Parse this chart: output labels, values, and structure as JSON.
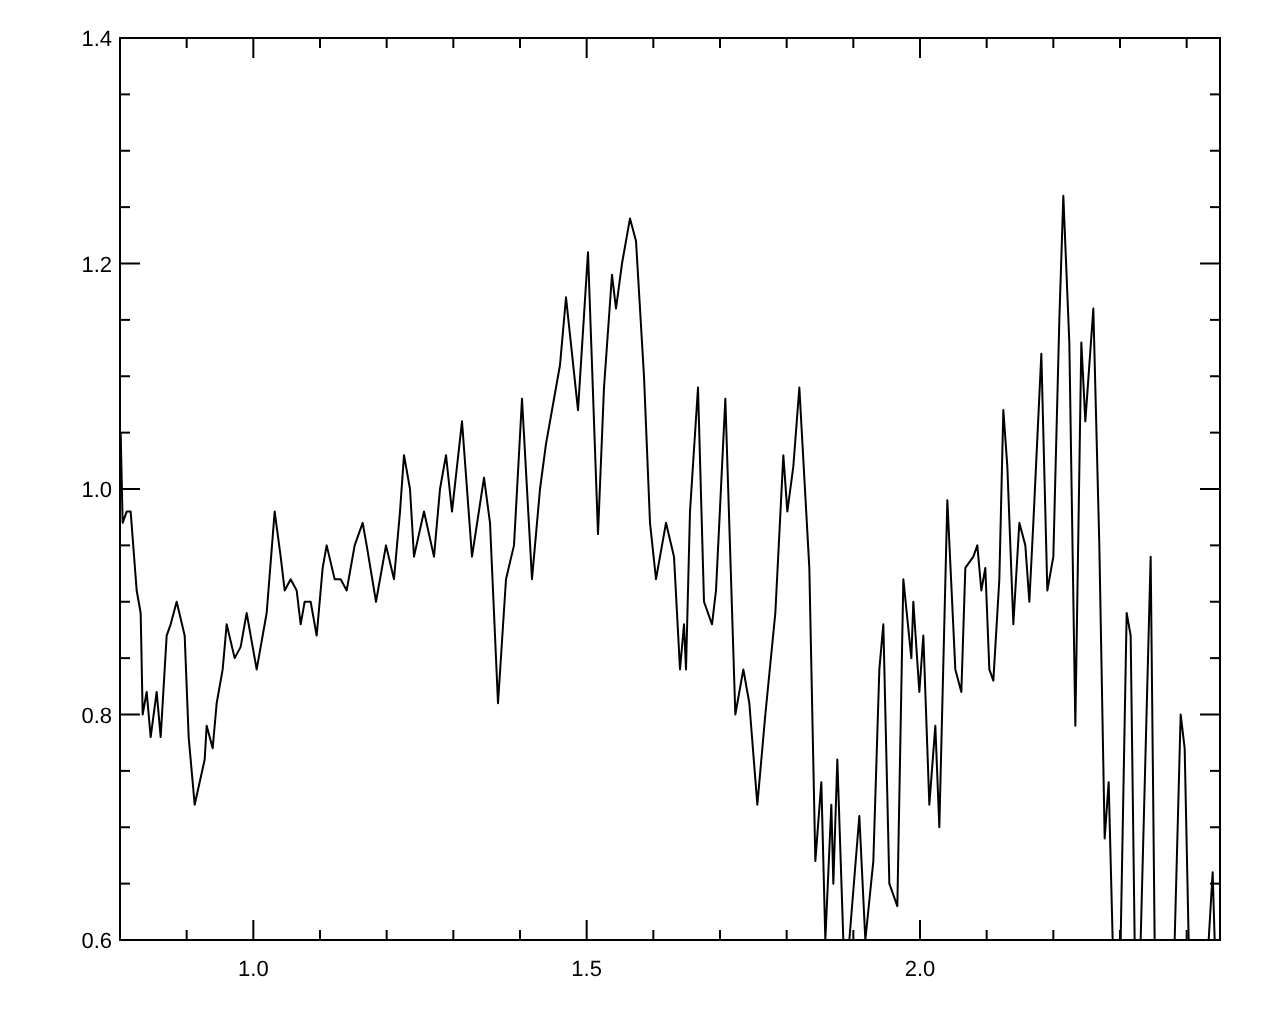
{
  "chart_data": {
    "type": "line",
    "color": "#000000",
    "x": [
      0.801,
      0.804,
      0.81,
      0.816,
      0.825,
      0.831,
      0.834,
      0.84,
      0.846,
      0.855,
      0.861,
      0.87,
      0.876,
      0.885,
      0.897,
      0.903,
      0.912,
      0.927,
      0.93,
      0.939,
      0.945,
      0.954,
      0.96,
      0.972,
      0.981,
      0.99,
      0.996,
      1.005,
      1.02,
      1.032,
      1.041,
      1.047,
      1.056,
      1.065,
      1.071,
      1.077,
      1.086,
      1.095,
      1.104,
      1.11,
      1.122,
      1.131,
      1.14,
      1.152,
      1.164,
      1.17,
      1.184,
      1.199,
      1.211,
      1.22,
      1.226,
      1.235,
      1.241,
      1.256,
      1.271,
      1.28,
      1.289,
      1.298,
      1.313,
      1.328,
      1.346,
      1.355,
      1.367,
      1.379,
      1.391,
      1.403,
      1.418,
      1.43,
      1.439,
      1.46,
      1.469,
      1.487,
      1.502,
      1.517,
      1.526,
      1.538,
      1.544,
      1.553,
      1.565,
      1.574,
      1.586,
      1.595,
      1.604,
      1.619,
      1.631,
      1.64,
      1.646,
      1.649,
      1.655,
      1.667,
      1.676,
      1.688,
      1.694,
      1.708,
      1.723,
      1.735,
      1.744,
      1.756,
      1.768,
      1.783,
      1.795,
      1.801,
      1.81,
      1.819,
      1.834,
      1.843,
      1.852,
      1.858,
      1.867,
      1.87,
      1.876,
      1.885,
      1.894,
      1.909,
      1.918,
      1.93,
      1.939,
      1.945,
      1.954,
      1.966,
      1.975,
      1.987,
      1.99,
      1.999,
      2.005,
      2.014,
      2.023,
      2.029,
      2.041,
      2.053,
      2.062,
      2.068,
      2.08,
      2.086,
      2.092,
      2.098,
      2.104,
      2.11,
      2.119,
      2.125,
      2.131,
      2.14,
      2.149,
      2.158,
      2.164,
      2.17,
      2.182,
      2.191,
      2.2,
      2.209,
      2.215,
      2.224,
      2.233,
      2.242,
      2.248,
      2.26,
      2.269,
      2.277,
      2.283,
      2.289,
      2.301,
      2.31,
      2.316,
      2.322,
      2.331,
      2.346,
      2.352,
      2.382,
      2.391,
      2.397,
      2.403,
      2.433,
      2.439,
      2.442
    ],
    "values": [
      1.05,
      0.97,
      0.98,
      0.98,
      0.91,
      0.89,
      0.8,
      0.82,
      0.78,
      0.82,
      0.78,
      0.87,
      0.88,
      0.9,
      0.87,
      0.78,
      0.72,
      0.76,
      0.79,
      0.77,
      0.81,
      0.84,
      0.88,
      0.85,
      0.86,
      0.89,
      0.87,
      0.84,
      0.89,
      0.98,
      0.94,
      0.91,
      0.92,
      0.91,
      0.88,
      0.9,
      0.9,
      0.87,
      0.93,
      0.95,
      0.92,
      0.92,
      0.91,
      0.95,
      0.97,
      0.95,
      0.9,
      0.95,
      0.92,
      0.98,
      1.03,
      1.0,
      0.94,
      0.98,
      0.94,
      1.0,
      1.03,
      0.98,
      1.06,
      0.94,
      1.01,
      0.97,
      0.81,
      0.92,
      0.95,
      1.08,
      0.92,
      1.0,
      1.04,
      1.11,
      1.17,
      1.07,
      1.21,
      0.96,
      1.09,
      1.19,
      1.16,
      1.2,
      1.24,
      1.22,
      1.1,
      0.97,
      0.92,
      0.97,
      0.94,
      0.84,
      0.88,
      0.84,
      0.98,
      1.09,
      0.9,
      0.88,
      0.91,
      1.08,
      0.8,
      0.84,
      0.81,
      0.72,
      0.8,
      0.89,
      1.03,
      0.98,
      1.02,
      1.09,
      0.93,
      0.67,
      0.74,
      0.6,
      0.72,
      0.65,
      0.76,
      0.6,
      0.6,
      0.71,
      0.6,
      0.67,
      0.84,
      0.88,
      0.65,
      0.63,
      0.92,
      0.85,
      0.9,
      0.82,
      0.87,
      0.72,
      0.79,
      0.7,
      0.99,
      0.84,
      0.82,
      0.93,
      0.94,
      0.95,
      0.91,
      0.93,
      0.84,
      0.83,
      0.92,
      1.07,
      1.02,
      0.88,
      0.97,
      0.95,
      0.9,
      0.97,
      1.12,
      0.91,
      0.94,
      1.15,
      1.26,
      1.13,
      0.79,
      1.13,
      1.06,
      1.16,
      0.95,
      0.69,
      0.74,
      0.6,
      0.6,
      0.89,
      0.87,
      0.6,
      0.6,
      0.94,
      0.6,
      0.6,
      0.8,
      0.77,
      0.6,
      0.6,
      0.66,
      0.6
    ],
    "xlim": [
      0.8,
      2.45
    ],
    "ylim": [
      0.6,
      1.4
    ],
    "xticks": [
      {
        "value": 0.9,
        "label": null
      },
      {
        "value": 1,
        "label": "1.0"
      },
      {
        "value": 1.1,
        "label": null
      },
      {
        "value": 1.2,
        "label": null
      },
      {
        "value": 1.3,
        "label": null
      },
      {
        "value": 1.4,
        "label": null
      },
      {
        "value": 1.5,
        "label": "1.5"
      },
      {
        "value": 1.6,
        "label": null
      },
      {
        "value": 1.7,
        "label": null
      },
      {
        "value": 1.8,
        "label": null
      },
      {
        "value": 1.9,
        "label": null
      },
      {
        "value": 2,
        "label": "2.0"
      },
      {
        "value": 2.1,
        "label": null
      },
      {
        "value": 2.2,
        "label": null
      },
      {
        "value": 2.3,
        "label": null
      },
      {
        "value": 2.4,
        "label": null
      }
    ],
    "yticks": [
      0.6,
      {
        "value": 0.65,
        "label": null
      },
      {
        "value": 0.7,
        "label": null
      },
      {
        "value": 0.75,
        "label": null
      },
      0.8,
      {
        "value": 0.85,
        "label": null
      },
      {
        "value": 0.9,
        "label": null
      },
      {
        "value": 0.95,
        "label": null
      },
      {
        "value": 1,
        "label": "1.0"
      },
      {
        "value": 1.05,
        "label": null
      },
      {
        "value": 1.1,
        "label": null
      },
      {
        "value": 1.15,
        "label": null
      },
      1.2,
      {
        "value": 1.25,
        "label": null
      },
      {
        "value": 1.3,
        "label": null
      },
      {
        "value": 1.35,
        "label": null
      },
      1.4
    ]
  }
}
